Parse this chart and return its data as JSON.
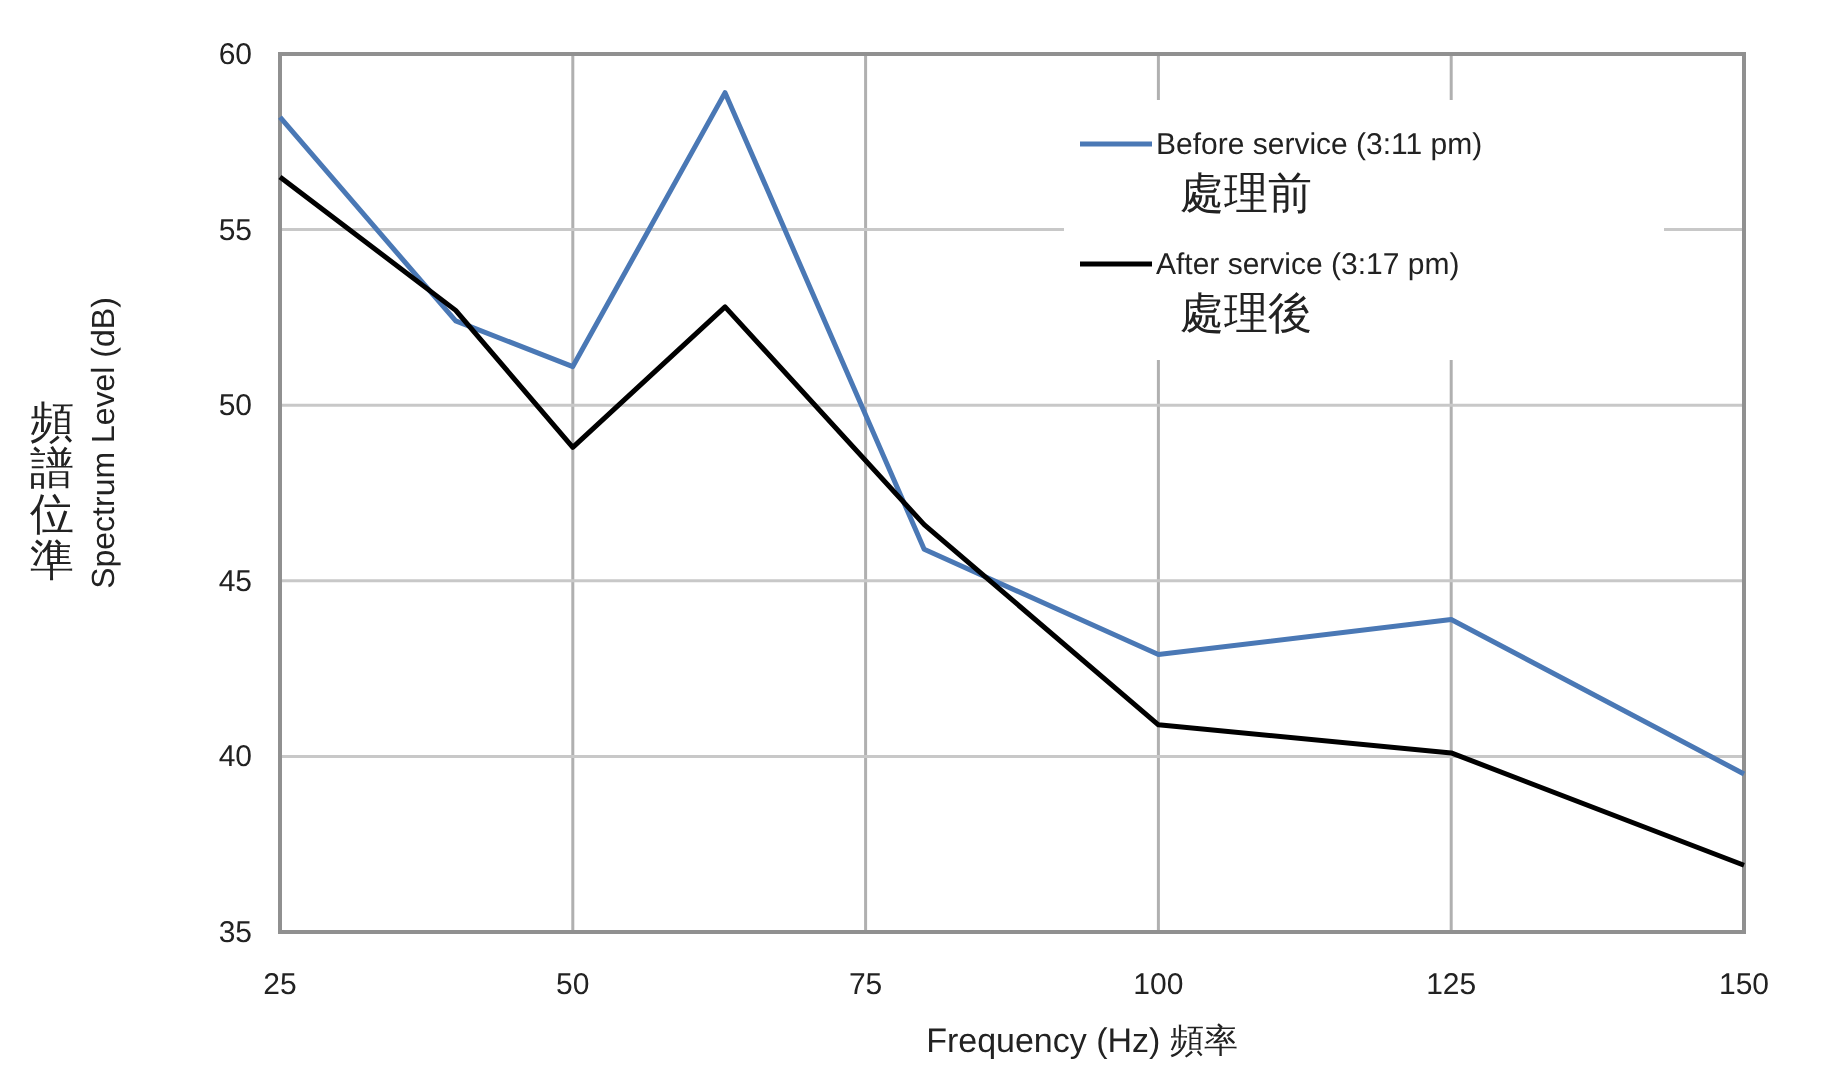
{
  "chart_data": {
    "type": "line",
    "xlabel": "Frequency (Hz) 頻率",
    "ylabel": "頻譜位準\nSpectrum Level (dB)",
    "x": [
      25,
      40,
      50,
      63,
      80,
      100,
      125,
      150
    ],
    "series": [
      {
        "name": "Before service (3:11 pm)\n處理前",
        "color": "#4a78b5",
        "values": [
          58.2,
          52.4,
          51.1,
          58.9,
          45.9,
          42.9,
          43.9,
          39.5
        ]
      },
      {
        "name": "After service (3:17 pm)\n處理後",
        "color": "#000000",
        "values": [
          56.5,
          52.7,
          48.8,
          52.8,
          46.6,
          40.9,
          40.1,
          36.9
        ]
      }
    ],
    "xlim": [
      25,
      150
    ],
    "xticks": [
      25,
      50,
      75,
      100,
      125,
      150
    ],
    "ylim": [
      35,
      60
    ],
    "yticks": [
      35,
      40,
      45,
      50,
      55,
      60
    ],
    "grid": true,
    "legend": "top right",
    "marker": "none",
    "line_style": "solid"
  }
}
